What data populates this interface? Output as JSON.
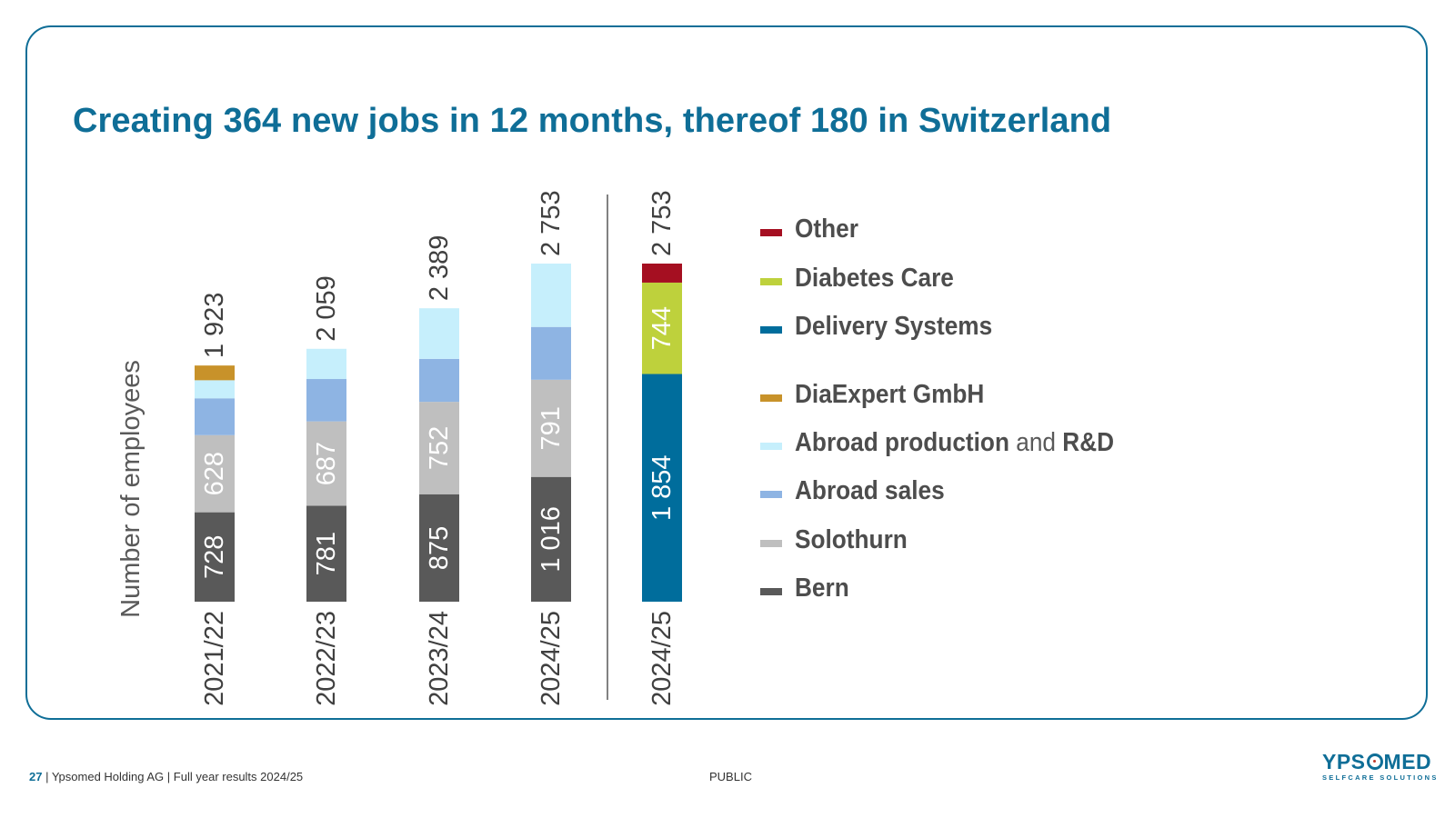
{
  "slide": {
    "title": "Creating 364 new jobs in 12 months, thereof 180 in Switzerland",
    "footer_page": "27",
    "footer_sep1": " | ",
    "footer_company": "Ypsomed Holding AG",
    "footer_sep2": " | ",
    "footer_report": "Full year results 2024/25",
    "classification": "PUBLIC",
    "logo_text_left": "YPS",
    "logo_text_right": "MED",
    "logo_tagline": "SELFCARE SOLUTIONS"
  },
  "colors": {
    "title": "#0f6e97",
    "Bern": "#595959",
    "Solothurn": "#bfbfbf",
    "Abroad sales": "#8eb4e3",
    "Abroad production and R&D": "#c6effc",
    "DiaExpert GmbH": "#c8922a",
    "Delivery Systems": "#006d9c",
    "Diabetes Care": "#bed13c",
    "Other": "#a50f21"
  },
  "chart_data": {
    "type": "bar",
    "stacked": true,
    "ylabel": "Number of employees",
    "categories": [
      "2021/22",
      "2022/23",
      "2023/24",
      "2024/25"
    ],
    "series": [
      {
        "name": "Bern",
        "values": [
          728,
          781,
          875,
          1016
        ],
        "labels": [
          "728",
          "781",
          "875",
          "1 016"
        ]
      },
      {
        "name": "Solothurn",
        "values": [
          628,
          687,
          752,
          791
        ],
        "labels": [
          "628",
          "687",
          "752",
          "791"
        ]
      },
      {
        "name": "Abroad sales",
        "values": [
          300,
          345,
          350,
          430
        ],
        "labels": [
          "",
          "",
          "",
          ""
        ]
      },
      {
        "name": "Abroad production and R&D",
        "values": [
          147,
          246,
          412,
          516
        ],
        "labels": [
          "",
          "",
          "",
          ""
        ]
      },
      {
        "name": "DiaExpert GmbH",
        "values": [
          120,
          0,
          0,
          0
        ],
        "labels": [
          "",
          "",
          "",
          ""
        ]
      }
    ],
    "totals": [
      "1 923",
      "2 059",
      "2 389",
      "2 753"
    ],
    "total_values": [
      1923,
      2059,
      2389,
      2753
    ],
    "segment_chart": {
      "category": "2024/25",
      "total": "2 753",
      "series": [
        {
          "name": "Delivery Systems",
          "value": 1854,
          "label": "1 854"
        },
        {
          "name": "Diabetes Care",
          "value": 744,
          "label": "744"
        },
        {
          "name": "Other",
          "value": 155,
          "label": ""
        }
      ]
    },
    "legend": [
      {
        "name": "Other",
        "bold": "Other",
        "normal": "",
        "bold2": ""
      },
      {
        "name": "Diabetes Care",
        "bold": "Diabetes Care",
        "normal": "",
        "bold2": ""
      },
      {
        "name": "Delivery Systems",
        "bold": "Delivery Systems",
        "normal": "",
        "bold2": ""
      },
      {
        "name": "DiaExpert GmbH",
        "bold": "DiaExpert GmbH",
        "normal": "",
        "bold2": ""
      },
      {
        "name": "Abroad production and R&D",
        "bold": "Abroad production",
        "normal": " and ",
        "bold2": "R&D"
      },
      {
        "name": "Abroad sales",
        "bold": "Abroad sales",
        "normal": "",
        "bold2": ""
      },
      {
        "name": "Solothurn",
        "bold": "Solothurn",
        "normal": "",
        "bold2": ""
      },
      {
        "name": "Bern",
        "bold": "Bern",
        "normal": "",
        "bold2": ""
      }
    ],
    "ylim": [
      0,
      2753
    ]
  }
}
